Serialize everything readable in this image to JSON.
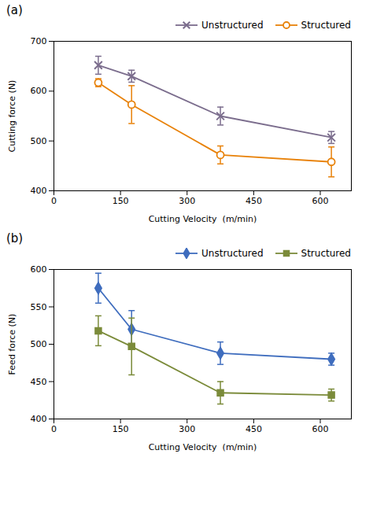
{
  "chart_data": [
    {
      "type": "line",
      "title": "(a)",
      "x": [
        100,
        175,
        375,
        625
      ],
      "xlabel": "Cutting Velocity  (m/min)",
      "ylabel": "Cutting force (N)",
      "xlim": [
        0,
        670
      ],
      "xticks": [
        0,
        150,
        300,
        450,
        600
      ],
      "ylim": [
        400,
        700
      ],
      "yticks": [
        400,
        500,
        600,
        700
      ],
      "legend": "upper right",
      "series": [
        {
          "name": "Unstructured",
          "color": "#7B6D8D",
          "marker": "x",
          "values": [
            652,
            630,
            550,
            507
          ],
          "errors": [
            18,
            12,
            18,
            12
          ]
        },
        {
          "name": "Structured",
          "color": "#E8820A",
          "marker": "circle_open",
          "values": [
            617,
            573,
            472,
            458
          ],
          "errors": [
            8,
            38,
            18,
            30
          ]
        }
      ]
    },
    {
      "type": "line",
      "title": "(b)",
      "x": [
        100,
        175,
        375,
        625
      ],
      "xlabel": "Cutting Velocity  (m/min)",
      "ylabel": "Feed force (N)",
      "xlim": [
        0,
        670
      ],
      "xticks": [
        0,
        150,
        300,
        450,
        600
      ],
      "ylim": [
        400,
        600
      ],
      "yticks": [
        400,
        450,
        500,
        550,
        600
      ],
      "legend": "upper right",
      "series": [
        {
          "name": "Unstructured",
          "color": "#3F6DBE",
          "marker": "diamond",
          "values": [
            575,
            520,
            488,
            480
          ],
          "errors": [
            20,
            25,
            15,
            8
          ]
        },
        {
          "name": "Structured",
          "color": "#7B8B3A",
          "marker": "square",
          "values": [
            518,
            497,
            435,
            432
          ],
          "errors": [
            20,
            38,
            15,
            8
          ]
        }
      ]
    }
  ]
}
